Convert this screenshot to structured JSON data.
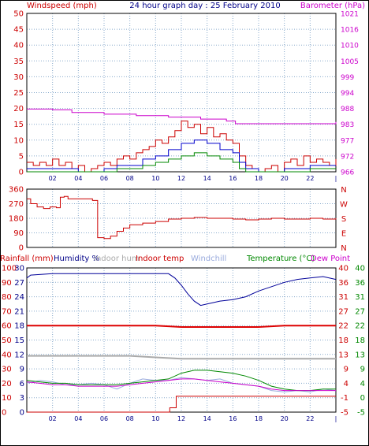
{
  "chart_data": [
    {
      "type": "line",
      "title": "24 hour graph day : 25 February 2010",
      "y_left_label": "Windspeed (mph)",
      "y_right_label": "Barometer (hPa)",
      "y_left_ticks": [
        0,
        5,
        10,
        15,
        20,
        25,
        30,
        35,
        40,
        45,
        50
      ],
      "y_left_range": [
        0,
        50
      ],
      "y_right_ticks": [
        966,
        972,
        977,
        983,
        988,
        994,
        999,
        1005,
        1010,
        1016,
        1021
      ],
      "y_right_range": [
        966,
        1021
      ],
      "x_tick_labels": [
        "02",
        "04",
        "06",
        "08",
        "10",
        "12",
        "14",
        "16",
        "18",
        "20",
        "22"
      ],
      "x_range_hours": [
        0,
        24
      ],
      "grid": true,
      "series": [
        {
          "name": "Windspeed (mph)",
          "color": "#cc0000",
          "axis": "left",
          "x": [
            0,
            0.5,
            1,
            1.5,
            2,
            2.5,
            3,
            3.5,
            4,
            4.5,
            5,
            5.5,
            6,
            6.5,
            7,
            7.5,
            8,
            8.5,
            9,
            9.5,
            10,
            10.5,
            11,
            11.5,
            12,
            12.5,
            13,
            13.5,
            14,
            14.5,
            15,
            15.5,
            16,
            16.5,
            17,
            17.5,
            18,
            18.5,
            19,
            19.5,
            20,
            20.5,
            21,
            21.5,
            22,
            22.5,
            23,
            23.5,
            24
          ],
          "values": [
            3,
            2,
            3,
            2,
            4,
            2,
            3,
            1,
            2,
            0,
            1,
            2,
            3,
            2,
            4,
            5,
            4,
            6,
            7,
            8,
            10,
            9,
            11,
            13,
            16,
            14,
            15,
            12,
            14,
            11,
            12,
            10,
            9,
            5,
            2,
            1,
            0,
            1,
            2,
            0,
            3,
            4,
            2,
            5,
            3,
            4,
            3,
            2,
            4
          ]
        },
        {
          "name": "Barometer (hPa)",
          "color": "#cc00cc",
          "axis": "right",
          "x": [
            0,
            2,
            3.5,
            6,
            8.5,
            11,
            13.5,
            15.5,
            16.2,
            24
          ],
          "values": [
            987.8,
            987.5,
            986.6,
            986.0,
            985.5,
            985.0,
            984.3,
            983.6,
            982.7,
            983.3
          ]
        },
        {
          "name": "Average windspeed",
          "color": "#0000cc",
          "axis": "left",
          "x": [
            0,
            2,
            4,
            5,
            6,
            7,
            8,
            9,
            10,
            11,
            12,
            13,
            14,
            15,
            16,
            16.5,
            17,
            18,
            19,
            20,
            21,
            22,
            23,
            24
          ],
          "values": [
            1,
            1,
            0,
            0,
            1,
            2,
            2,
            4,
            5,
            7,
            9,
            10,
            9,
            7,
            6,
            3,
            1,
            0,
            0,
            1,
            1,
            2,
            2,
            2
          ]
        },
        {
          "name": "Wind lull",
          "color": "#008800",
          "axis": "left",
          "x": [
            0,
            2,
            4,
            6,
            7,
            8,
            9,
            10,
            11,
            12,
            13,
            14,
            15,
            16,
            16.5,
            17,
            18,
            19,
            20,
            21,
            22,
            23,
            24
          ],
          "values": [
            0,
            0,
            0,
            0,
            1,
            1,
            2,
            3,
            4,
            5,
            6,
            5,
            4,
            3,
            1,
            0,
            0,
            0,
            0,
            0,
            1,
            1,
            1
          ]
        }
      ]
    },
    {
      "type": "line",
      "y_left_ticks": [
        0,
        90,
        180,
        270,
        360
      ],
      "y_left_range": [
        0,
        360
      ],
      "y_right_ticks": [
        "N",
        "W",
        "S",
        "E",
        "N"
      ],
      "x_range_hours": [
        0,
        24
      ],
      "grid": true,
      "series": [
        {
          "name": "Wind direction",
          "color": "#cc0000",
          "x": [
            0,
            0.3,
            0.8,
            1.3,
            1.8,
            2.3,
            2.6,
            2.9,
            3.2,
            3.6,
            4.1,
            4.6,
            5.1,
            5.5,
            6,
            6.5,
            7,
            7.5,
            8,
            9,
            10,
            11,
            12,
            13,
            14,
            15,
            16,
            17,
            18,
            19,
            20,
            21,
            22,
            23,
            24
          ],
          "values": [
            300,
            270,
            250,
            240,
            250,
            245,
            310,
            315,
            300,
            300,
            300,
            300,
            290,
            60,
            55,
            70,
            100,
            120,
            140,
            150,
            160,
            175,
            180,
            185,
            180,
            180,
            175,
            170,
            175,
            180,
            175,
            175,
            180,
            175,
            180
          ]
        }
      ]
    },
    {
      "type": "line",
      "legend": [
        "Rainfall (mm)",
        "Humidity %",
        "Indoor hum",
        "Indoor temp",
        "Windchill",
        "Temperature (°C)",
        "Dew Point"
      ],
      "y_left_rain_ticks": [
        0,
        10,
        20,
        30,
        40,
        50,
        60,
        70,
        80,
        90,
        100
      ],
      "y_left_hum_ticks": [
        0,
        3,
        6,
        9,
        12,
        15,
        18,
        21,
        24,
        27,
        30
      ],
      "y_right_col1_ticks": [
        -5,
        -1,
        4,
        9,
        13,
        18,
        22,
        27,
        31,
        36,
        40
      ],
      "y_right_col2_ticks": [
        -5,
        0,
        4,
        9,
        13,
        18,
        22,
        27,
        31,
        36,
        40
      ],
      "y_range": [
        0,
        100
      ],
      "x_range_hours": [
        0,
        24
      ],
      "grid": true,
      "series": [
        {
          "name": "Humidity %",
          "color": "#000099",
          "x": [
            0,
            0.3,
            2,
            4,
            6,
            8,
            10,
            11,
            11.5,
            12,
            12.5,
            13,
            13.5,
            14,
            15,
            16,
            17,
            18,
            19,
            20,
            21,
            22,
            23,
            24
          ],
          "values": [
            93,
            95,
            96,
            96,
            96,
            96,
            96,
            96,
            93,
            88,
            82,
            77,
            74,
            75,
            77,
            78,
            80,
            84,
            87,
            90,
            92,
            93,
            94,
            92
          ]
        },
        {
          "name": "Indoor hum",
          "color": "#aaaaaa",
          "x": [
            0,
            4,
            6,
            8,
            10,
            12,
            14,
            16,
            18,
            20,
            22,
            24
          ],
          "values": [
            39,
            39,
            39,
            39,
            38,
            37,
            37,
            37,
            37,
            37,
            37,
            37
          ]
        },
        {
          "name": "Indoor temp",
          "color": "#dd0000",
          "x": [
            0,
            4,
            8,
            10,
            12,
            14,
            16,
            18,
            20,
            22,
            24
          ],
          "values": [
            60,
            60,
            60,
            60,
            59,
            59,
            59,
            59,
            60,
            60,
            60
          ]
        },
        {
          "name": "Windchill",
          "color": "#99aadd",
          "x": [
            0,
            1,
            2,
            3,
            4,
            5,
            6,
            7,
            8,
            9,
            10,
            11,
            12,
            13,
            14,
            15,
            16,
            17,
            18,
            19,
            20,
            21,
            22,
            23,
            24
          ],
          "values": [
            20,
            22,
            21,
            19,
            19,
            20,
            19,
            16,
            20,
            23,
            22,
            22,
            24,
            23,
            22,
            23,
            20,
            19,
            18,
            15,
            14,
            15,
            14,
            16,
            15
          ]
        },
        {
          "name": "Temperature (°C)",
          "color": "#008800",
          "x": [
            0,
            1,
            2,
            3,
            4,
            5,
            6,
            7,
            8,
            9,
            10,
            11,
            12,
            13,
            14,
            15,
            16,
            17,
            18,
            19,
            20,
            21,
            22,
            23,
            24
          ],
          "values": [
            22,
            21,
            20,
            20,
            19,
            19,
            19,
            19,
            20,
            21,
            22,
            23,
            27,
            29,
            29,
            28,
            27,
            25,
            22,
            18,
            16,
            15,
            15,
            16,
            16
          ]
        },
        {
          "name": "Dew Point",
          "color": "#cc00cc",
          "x": [
            0,
            1,
            2,
            3,
            4,
            5,
            6,
            7,
            8,
            9,
            10,
            11,
            12,
            13,
            14,
            15,
            16,
            17,
            18,
            19,
            20,
            21,
            22,
            23,
            24
          ],
          "values": [
            21,
            20,
            19,
            19,
            18,
            18,
            18,
            18,
            19,
            20,
            21,
            22,
            23,
            23,
            22,
            21,
            20,
            19,
            18,
            16,
            15,
            15,
            15,
            15,
            15
          ]
        },
        {
          "name": "Rainfall (mm)",
          "color": "#cc0000",
          "x": [
            0,
            11,
            11.1,
            11.5,
            11.6,
            24
          ],
          "values": [
            0,
            0,
            3,
            3,
            11,
            11
          ]
        }
      ]
    }
  ]
}
